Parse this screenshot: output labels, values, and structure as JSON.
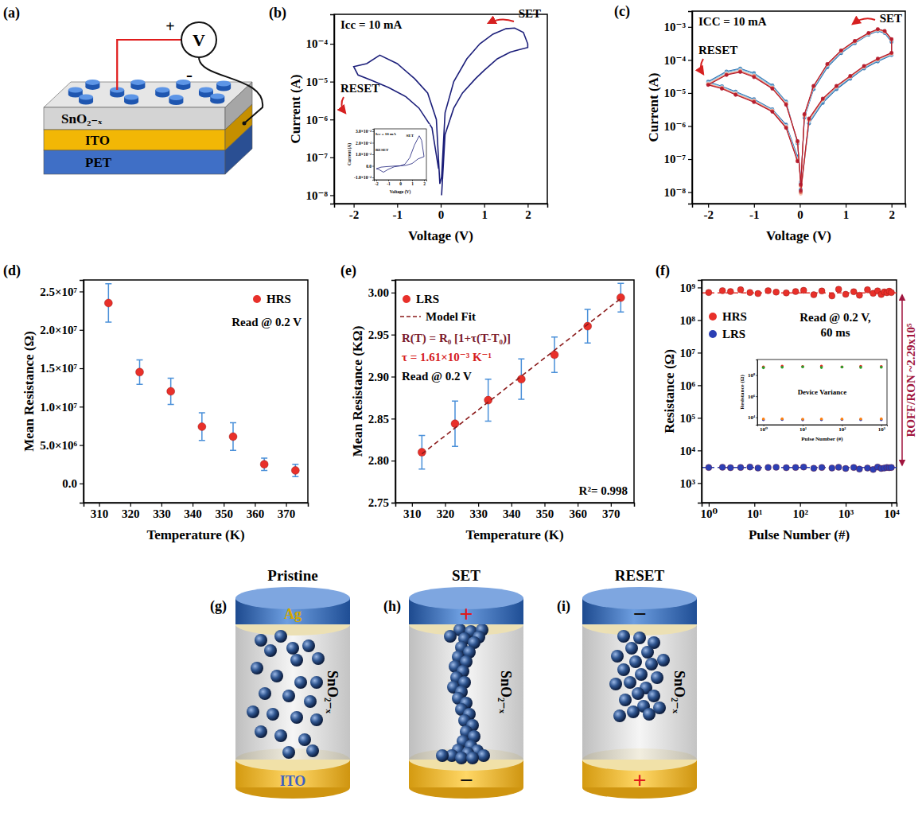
{
  "chart_data": [
    {
      "panel": "(b)",
      "type": "line",
      "x_label": "Voltage (V)",
      "y_label": "Current (A)",
      "log": "y",
      "xlim": [
        -2.45,
        2.45
      ],
      "xticks": [
        -2,
        -1,
        0,
        1,
        2
      ],
      "ylim": [
        6e-09,
        0.0006
      ],
      "yticks": [
        {
          "value": 1e-08,
          "label": "10⁻⁸"
        },
        {
          "value": 1e-07,
          "label": "10⁻⁷"
        },
        {
          "value": 1e-06,
          "label": "10⁻⁶"
        },
        {
          "value": 1e-05,
          "label": "10⁻⁵"
        },
        {
          "value": 0.0001,
          "label": "10⁻⁴"
        }
      ],
      "annotations": [
        "Icc = 10 mA",
        "SET",
        "RESET"
      ],
      "x": [
        0.02,
        0.1,
        0.3,
        0.5,
        0.8,
        1.0,
        1.3,
        1.6,
        1.8,
        2.0,
        2.0,
        1.9,
        1.7,
        1.5,
        1.2,
        0.9,
        0.6,
        0.3,
        0.1,
        0.02,
        -0.02,
        -0.1,
        -0.3,
        -0.6,
        -1.0,
        -1.4,
        -1.7,
        -2.0,
        -1.9,
        -1.6,
        -1.2,
        -0.8,
        -0.5,
        -0.2,
        -0.05
      ],
      "series": [
        {
          "color": "#1c1f7a",
          "values": [
            1e-08,
            4e-07,
            2e-06,
            5e-06,
            1.2e-05,
            2e-05,
            4e-05,
            6e-05,
            7e-05,
            8e-05,
            0.0001,
            0.0002,
            0.00026,
            0.00025,
            0.00018,
            0.0001,
            4e-05,
            1e-05,
            1.5e-06,
            3e-08,
            2e-08,
            1e-06,
            5e-06,
            1.2e-05,
            3e-05,
            5e-05,
            3e-05,
            2.5e-05,
            1.5e-05,
            1.1e-05,
            7e-06,
            4e-06,
            2e-06,
            6e-07,
            5e-08
          ]
        }
      ],
      "inset": {
        "type": "line",
        "x_label": "Voltage (V)",
        "y_label": "Current (A)",
        "xlim": [
          -2.2,
          2.2
        ],
        "xticks": [
          -2,
          -1,
          0,
          1,
          2
        ],
        "ylim": [
          -0.00012,
          0.00032
        ],
        "yticks": [
          {
            "value": -0.0001,
            "label": "-1.0×10⁻⁴"
          },
          {
            "value": 0,
            "label": "0.0"
          },
          {
            "value": 0.0001,
            "label": "1.0×10⁻⁴"
          },
          {
            "value": 0.0002,
            "label": "2.0×10⁻⁴"
          },
          {
            "value": 0.0003,
            "label": "3.0×10⁻⁴"
          }
        ],
        "annotations": [
          "Icc = 10 mA",
          "SET",
          "RESET"
        ],
        "x": [
          0,
          0.5,
          1,
          1.5,
          2,
          1.8,
          1.6,
          1.2,
          0.8,
          0.4,
          0,
          -0.5,
          -1,
          -1.4,
          -1.8,
          -2,
          -1.6,
          -1.2,
          -0.8,
          -0.4,
          0
        ],
        "series": [
          {
            "color": "#1c1f7a",
            "values": [
              0,
              5e-06,
              2e-05,
              6e-05,
              8e-05,
              0.00022,
              0.00026,
              0.00018,
              7e-05,
              1.5e-05,
              0,
              -8e-06,
              -3e-05,
              -5.5e-05,
              -3e-05,
              -2.5e-05,
              -1.1e-05,
              -7e-06,
              -4e-06,
              -1e-06,
              0
            ]
          }
        ]
      }
    },
    {
      "panel": "(c)",
      "type": "line",
      "x_label": "Voltage (V)",
      "y_label": "Current (A)",
      "log": "y",
      "xlim": [
        -2.35,
        2.3
      ],
      "xticks": [
        -2,
        -1,
        0,
        1,
        2
      ],
      "ylim": [
        4.5e-09,
        0.003
      ],
      "yticks": [
        {
          "value": 1e-08,
          "label": "10⁻⁸"
        },
        {
          "value": 1e-07,
          "label": "10⁻⁷"
        },
        {
          "value": 1e-06,
          "label": "10⁻⁶"
        },
        {
          "value": 1e-05,
          "label": "10⁻⁵"
        },
        {
          "value": 0.0001,
          "label": "10⁻⁴"
        },
        {
          "value": 0.001,
          "label": "10⁻³"
        }
      ],
      "annotations": [
        "ICC = 10 mA",
        "SET",
        "RESET"
      ],
      "x": [
        0.02,
        0.2,
        0.5,
        0.8,
        1.1,
        1.4,
        1.7,
        2.0,
        2.0,
        1.85,
        1.7,
        1.5,
        1.2,
        0.9,
        0.6,
        0.3,
        0.1,
        0.02,
        -0.05,
        -0.3,
        -0.6,
        -1.0,
        -1.3,
        -1.6,
        -2.0,
        -1.7,
        -1.4,
        -1.0,
        -0.6,
        -0.3,
        -0.05
      ],
      "series": [
        {
          "color": "#2166ac",
          "marker": "circle",
          "values": [
            1.2e-08,
            1.2e-06,
            5e-06,
            1.3e-05,
            2.7e-05,
            5.5e-05,
            9e-05,
            0.00014,
            0.00035,
            0.00065,
            0.00075,
            0.00058,
            0.00032,
            0.00016,
            6e-05,
            1.3e-05,
            1.8e-06,
            2e-08,
            3e-07,
            5.5e-06,
            1.7e-05,
            4e-05,
            5.5e-05,
            4.5e-05,
            2.2e-05,
            1.6e-05,
            1.1e-05,
            6.5e-06,
            3.2e-06,
            1.1e-06,
            1.2e-07
          ]
        },
        {
          "color": "#67a9cf",
          "marker": "circle",
          "values": [
            1e-08,
            1.3e-06,
            5.5e-06,
            1.4e-05,
            2.9e-05,
            5.8e-05,
            9.5e-05,
            0.000145,
            0.00038,
            0.00068,
            0.00078,
            0.0006,
            0.00034,
            0.00017,
            6.5e-05,
            1.4e-05,
            1.9e-06,
            1.8e-08,
            3e-07,
            5.2e-06,
            1.6e-05,
            3.8e-05,
            5.3e-05,
            4.3e-05,
            2.1e-05,
            1.55e-05,
            1.05e-05,
            6.2e-06,
            3.1e-06,
            1e-06,
            1.1e-07
          ]
        },
        {
          "color": "#bcd6ea",
          "marker": "circle",
          "values": [
            1.1e-08,
            1.4e-06,
            6e-06,
            1.5e-05,
            3e-05,
            6e-05,
            0.0001,
            0.00015,
            0.0004,
            0.0007,
            0.0008,
            0.00061,
            0.00035,
            0.00018,
            7e-05,
            1.5e-05,
            2e-06,
            2e-08,
            3.2e-07,
            5e-06,
            1.5e-05,
            3.5e-05,
            5e-05,
            4e-05,
            2e-05,
            1.5e-05,
            1e-05,
            6e-06,
            3e-06,
            1e-06,
            1e-07
          ]
        },
        {
          "color": "#f4b6a0",
          "marker": "circle",
          "values": [
            9e-09,
            1.5e-06,
            6.2e-06,
            1.55e-05,
            3.1e-05,
            6.2e-05,
            0.000103,
            0.000155,
            0.00041,
            0.00072,
            0.00082,
            0.00063,
            0.00036,
            0.000185,
            7.2e-05,
            1.55e-05,
            2.1e-06,
            1.5e-08,
            3.3e-07,
            4.8e-06,
            1.45e-05,
            3.3e-05,
            4.7e-05,
            3.8e-05,
            1.9e-05,
            1.45e-05,
            9.5e-06,
            5.8e-06,
            2.9e-06,
            9.5e-07,
            9e-08
          ]
        },
        {
          "color": "#e0604d",
          "marker": "circle",
          "values": [
            1e-08,
            1.6e-06,
            6.5e-06,
            1.6e-05,
            3.2e-05,
            6.4e-05,
            0.000106,
            0.00016,
            0.00042,
            0.00074,
            0.00084,
            0.00064,
            0.00037,
            0.00019,
            7.4e-05,
            1.6e-05,
            2.2e-06,
            1.6e-08,
            3.4e-07,
            4.6e-06,
            1.4e-05,
            3.2e-05,
            4.5e-05,
            3.6e-05,
            1.8e-05,
            1.4e-05,
            9e-06,
            5.5e-06,
            2.8e-06,
            9e-07,
            9e-08
          ]
        },
        {
          "color": "#b2182b",
          "marker": "circle",
          "values": [
            1.1e-08,
            1.7e-06,
            6.8e-06,
            1.65e-05,
            3.3e-05,
            6.6e-05,
            0.00011,
            0.000165,
            0.00043,
            0.00076,
            0.00086,
            0.00066,
            0.00038,
            0.000195,
            7.6e-05,
            1.65e-05,
            2.3e-06,
            1.7e-08,
            3.5e-07,
            4.4e-06,
            1.35e-05,
            3e-05,
            4.3e-05,
            3.5e-05,
            1.75e-05,
            1.35e-05,
            8.8e-06,
            5.3e-06,
            2.7e-06,
            8.8e-07,
            8.5e-08
          ]
        }
      ]
    },
    {
      "panel": "(d)",
      "type": "scatter",
      "x_label": "Temperature (K)",
      "y_label": "Mean Resistance (Ω)",
      "xlim": [
        305,
        377
      ],
      "xticks": [
        310,
        320,
        330,
        340,
        350,
        360,
        370
      ],
      "ylim": [
        -2500000,
        26500000
      ],
      "yticks": [
        {
          "value": 0,
          "label": "0.0"
        },
        {
          "value": 5000000,
          "label": "5.0×10⁶"
        },
        {
          "value": 10000000,
          "label": "1.0×10⁷"
        },
        {
          "value": 15000000,
          "label": "1.5×10⁷"
        },
        {
          "value": 20000000,
          "label": "2.0×10⁷"
        },
        {
          "value": 25000000,
          "label": "2.5×10⁷"
        }
      ],
      "legend": "top-right",
      "annotations": [
        "Read @ 0.2 V"
      ],
      "x": [
        313,
        323,
        333,
        343,
        353,
        363,
        373
      ],
      "series": [
        {
          "name": "HRS",
          "color": "#e8302a",
          "marker": "circle",
          "values": [
            23500000,
            14500000,
            12000000,
            7400000,
            6100000,
            2500000,
            1700000
          ],
          "errors": [
            2500000,
            1600000,
            1700000,
            1800000,
            1800000,
            800000,
            800000
          ]
        }
      ]
    },
    {
      "panel": "(e)",
      "type": "scatter",
      "x_label": "Temperature (K)",
      "y_label": "Mean Resistance (KΩ)",
      "xlim": [
        305,
        377
      ],
      "xticks": [
        310,
        320,
        330,
        340,
        350,
        360,
        370
      ],
      "ylim": [
        2.75,
        3.015
      ],
      "yticks": [
        2.75,
        {
          "value": 2.8,
          "label": "2.80"
        },
        2.85,
        {
          "value": 2.9,
          "label": "2.90"
        },
        2.95,
        {
          "value": 3.0,
          "label": "3.00"
        }
      ],
      "legend": "top-left",
      "annotations": [
        "R(T) = R₀ [1+τ(T-T₀)]",
        "τ = 1.61×10⁻³ K⁻¹",
        "Read @ 0.2 V",
        "R²= 0.998"
      ],
      "x": [
        313,
        323,
        333,
        343,
        353,
        363,
        373
      ],
      "series": [
        {
          "name": "LRS",
          "type": "scatter",
          "marker": "circle",
          "color": "#e8302a",
          "values": [
            2.81,
            2.844,
            2.872,
            2.897,
            2.926,
            2.96,
            2.994
          ],
          "errors": [
            0.02,
            0.027,
            0.025,
            0.024,
            0.021,
            0.02,
            0.017
          ]
        },
        {
          "name": "Model Fit",
          "type": "line",
          "line_style": "dashed",
          "color": "#8b1a1a",
          "x": [
            313,
            373
          ],
          "values": [
            2.808,
            2.993
          ]
        }
      ]
    },
    {
      "panel": "(f)",
      "type": "scatter",
      "x_label": "Pulse Number (#)",
      "y_label": "Resistance (Ω)",
      "log": true,
      "xlim": [
        0.7,
        13000
      ],
      "xticks": [
        {
          "value": 1,
          "label": "10⁰"
        },
        {
          "value": 10,
          "label": "10¹"
        },
        {
          "value": 100,
          "label": "10²"
        },
        {
          "value": 1000,
          "label": "10³"
        },
        {
          "value": 10000,
          "label": "10⁴"
        }
      ],
      "ylim": [
        250,
        1700000000
      ],
      "yticks": [
        {
          "value": 1000,
          "label": "10³"
        },
        {
          "value": 10000,
          "label": "10⁴"
        },
        {
          "value": 100000,
          "label": "10⁵"
        },
        {
          "value": 1000000,
          "label": "10⁶"
        },
        {
          "value": 10000000,
          "label": "10⁷"
        },
        {
          "value": 100000000,
          "label": "10⁸"
        },
        {
          "value": 1000000000,
          "label": "10⁹"
        }
      ],
      "legend": "top-left",
      "annotations": [
        "Read @ 0.2 V,",
        "60 ms",
        "ROFF/RON ~2.29x10⁵"
      ],
      "reference_values": [
        687000000,
        3000
      ],
      "x": [
        1,
        2,
        3,
        5,
        8,
        12,
        20,
        30,
        50,
        80,
        120,
        200,
        300,
        500,
        700,
        1000,
        1500,
        2000,
        3000,
        4000,
        5000,
        6000,
        7000,
        8000,
        9000,
        10000
      ],
      "series": [
        {
          "name": "HRS",
          "color": "#e8302a",
          "marker": "circle",
          "values": [
            700000000.0,
            800000000.0,
            750000000.0,
            850000000.0,
            700000000.0,
            650000000.0,
            800000000.0,
            720000000.0,
            680000000.0,
            750000000.0,
            820000000.0,
            600000000.0,
            780000000.0,
            550000000.0,
            880000000.0,
            620000000.0,
            740000000.0,
            580000000.0,
            850000000.0,
            660000000.0,
            790000000.0,
            610000000.0,
            730000000.0,
            690000000.0,
            770000000.0,
            700000000.0
          ]
        },
        {
          "name": "LRS",
          "color": "#2b3fb5",
          "marker": "circle",
          "values": [
            3000,
            3050,
            2950,
            3000,
            3100,
            2900,
            3000,
            3050,
            2950,
            3000,
            3100,
            2850,
            3000,
            2900,
            3050,
            2800,
            3000,
            2700,
            2900,
            2600,
            3100,
            2800,
            2900,
            3000,
            2950,
            3000
          ]
        }
      ],
      "inset": {
        "title": "Device Variance",
        "type": "scatter",
        "log": true,
        "x_label": "Pulse Number (#)",
        "y_label": "Resistance (Ω)",
        "xlim": [
          0.7,
          1400
        ],
        "xticks": [
          {
            "value": 1,
            "label": "10⁰"
          },
          {
            "value": 10,
            "label": "10¹"
          },
          {
            "value": 100,
            "label": "10²"
          },
          {
            "value": 1000,
            "label": "10³"
          }
        ],
        "ylim": [
          2000,
          3000000000
        ],
        "yticks": [
          {
            "value": 10000,
            "label": "10⁴"
          },
          {
            "value": 1000000,
            "label": "10⁶"
          },
          {
            "value": 100000000,
            "label": "10⁸"
          }
        ],
        "x": [
          1,
          3,
          10,
          30,
          100,
          300,
          1000
        ],
        "series": [
          {
            "color": "#e8302a",
            "marker": "circle",
            "values": [
              600000000.0,
              700000000.0,
              650000000.0,
              700000000.0,
              600000000.0,
              680000000.0,
              650000000.0
            ]
          },
          {
            "color": "#2ca02c",
            "marker": "circle",
            "values": [
              500000000.0,
              550000000.0,
              600000000.0,
              520000000.0,
              580000000.0,
              540000000.0,
              560000000.0
            ]
          },
          {
            "color": "#2b3fb5",
            "marker": "circle",
            "values": [
              6000,
              6200,
              5800,
              6000,
              6100,
              5900,
              6000
            ]
          },
          {
            "color": "#ff7f0e",
            "marker": "circle",
            "values": [
              7000,
              7200,
              6800,
              7100,
              6900,
              7000,
              7200
            ]
          }
        ]
      }
    }
  ],
  "schematic": {
    "panel": "(a)",
    "layers": [
      "SnO₂₋ₓ",
      "ITO",
      "PET"
    ],
    "meter": "V",
    "positive": "+",
    "negative": "-"
  },
  "filament_diagrams": [
    {
      "panel": "(g)",
      "title": "Pristine",
      "top_label": "Ag",
      "top_color": "#d4a800",
      "bottom_label": "ITO",
      "bottom_color": "#3d5fc4",
      "medium": "SnO₂₋ₓ"
    },
    {
      "panel": "(h)",
      "title": "SET",
      "top_label": "+",
      "top_color": "#e01b1b",
      "bottom_label": "−",
      "bottom_color": "#111111",
      "medium": "SnO₂₋ₓ"
    },
    {
      "panel": "(i)",
      "title": "RESET",
      "top_label": "−",
      "top_color": "#111111",
      "bottom_label": "+",
      "bottom_color": "#e01b1b",
      "medium": "SnO₂₋ₓ"
    }
  ]
}
